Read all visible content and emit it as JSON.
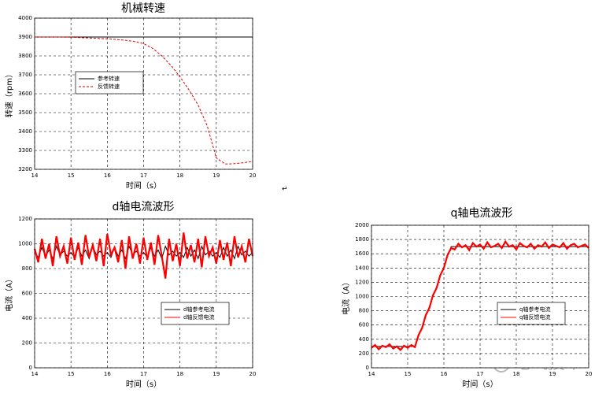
{
  "chart_data": [
    {
      "type": "line",
      "title": "机械转速",
      "xlabel": "时间（s）",
      "ylabel": "转速（rpm）",
      "x": [
        14,
        14.25,
        14.5,
        14.75,
        15,
        15.25,
        15.5,
        15.75,
        16,
        16.25,
        16.5,
        16.75,
        17,
        17.25,
        17.5,
        17.75,
        18,
        18.25,
        18.5,
        18.75,
        19,
        19.25,
        19.5,
        19.75,
        20
      ],
      "series": [
        {
          "name": "参考转速",
          "color": "#000000",
          "linestyle": "solid",
          "values": [
            3900,
            3900,
            3900,
            3900,
            3900,
            3900,
            3900,
            3900,
            3900,
            3900,
            3900,
            3900,
            3900,
            3900,
            3900,
            3900,
            3900,
            3900,
            3900,
            3900,
            3900,
            3900,
            3900,
            3900,
            3900
          ]
        },
        {
          "name": "反馈转速",
          "color": "#e00000",
          "linestyle": "dashed",
          "values": [
            3900,
            3900,
            3900,
            3900,
            3899,
            3897,
            3895,
            3893,
            3890,
            3887,
            3883,
            3876,
            3865,
            3840,
            3800,
            3750,
            3690,
            3620,
            3540,
            3430,
            3260,
            3228,
            3230,
            3235,
            3242
          ]
        }
      ],
      "xlim": [
        14,
        20
      ],
      "xticks": [
        14,
        15,
        16,
        17,
        18,
        19,
        20
      ],
      "ylim": [
        3200,
        4000
      ],
      "yticks": [
        3200,
        3300,
        3400,
        3500,
        3600,
        3700,
        3800,
        3900,
        4000
      ],
      "grid": true,
      "legend": "middle-left"
    },
    {
      "type": "line",
      "title": "d轴电流波形",
      "xlabel": "时间（s）",
      "ylabel": "电流（A）",
      "x": [
        14,
        14.1,
        14.2,
        14.3,
        14.4,
        14.5,
        14.6,
        14.7,
        14.8,
        14.9,
        15,
        15.1,
        15.2,
        15.3,
        15.4,
        15.5,
        15.6,
        15.7,
        15.8,
        15.9,
        16,
        16.1,
        16.2,
        16.3,
        16.4,
        16.5,
        16.6,
        16.7,
        16.8,
        16.9,
        17,
        17.1,
        17.2,
        17.3,
        17.4,
        17.5,
        17.6,
        17.7,
        17.8,
        17.9,
        18,
        18.1,
        18.2,
        18.3,
        18.4,
        18.5,
        18.6,
        18.7,
        18.8,
        18.9,
        19,
        19.1,
        19.2,
        19.3,
        19.4,
        19.5,
        19.6,
        19.7,
        19.8,
        19.9,
        20
      ],
      "series": [
        {
          "name": "d轴参考电流",
          "color": "#000000",
          "linestyle": "solid",
          "values": [
            930,
            890,
            970,
            900,
            950,
            880,
            980,
            910,
            940,
            900,
            930,
            890,
            970,
            900,
            950,
            880,
            980,
            910,
            940,
            900,
            930,
            890,
            970,
            900,
            950,
            880,
            980,
            910,
            940,
            900,
            930,
            890,
            970,
            900,
            950,
            880,
            980,
            910,
            940,
            900,
            930,
            890,
            970,
            900,
            950,
            880,
            980,
            910,
            940,
            900,
            930,
            890,
            970,
            900,
            950,
            880,
            980,
            910,
            940,
            900,
            930
          ]
        },
        {
          "name": "d轴反馈电流",
          "color": "#ff0000",
          "linestyle": "solid",
          "values": [
            960,
            850,
            1040,
            880,
            1000,
            820,
            1060,
            900,
            980,
            840,
            1050,
            870,
            1010,
            830,
            1070,
            890,
            990,
            860,
            1040,
            820,
            1080,
            910,
            970,
            850,
            1030,
            800,
            1060,
            880,
            1000,
            840,
            1050,
            870,
            1010,
            830,
            1070,
            900,
            720,
            1040,
            860,
            1000,
            820,
            1090,
            880,
            990,
            850,
            1040,
            810,
            1060,
            900,
            970,
            840,
            1030,
            870,
            1010,
            820,
            1060,
            890,
            980,
            850,
            1040,
            900
          ]
        }
      ],
      "xlim": [
        14,
        20
      ],
      "xticks": [
        14,
        15,
        16,
        17,
        18,
        19,
        20
      ],
      "ylim": [
        0,
        1200
      ],
      "yticks": [
        0,
        200,
        400,
        600,
        800,
        1000,
        1200
      ],
      "grid": true,
      "legend": "lower-right"
    },
    {
      "type": "line",
      "title": "q轴电流波形",
      "xlabel": "时间（s）",
      "ylabel": "电流（A）",
      "x": [
        14,
        14.1,
        14.2,
        14.3,
        14.4,
        14.5,
        14.6,
        14.7,
        14.8,
        14.9,
        15,
        15.1,
        15.2,
        15.3,
        15.4,
        15.5,
        15.6,
        15.7,
        15.8,
        15.9,
        16,
        16.1,
        16.2,
        16.3,
        16.4,
        16.5,
        16.6,
        16.7,
        16.8,
        16.9,
        17,
        17.1,
        17.2,
        17.3,
        17.4,
        17.5,
        17.6,
        17.7,
        17.8,
        17.9,
        18,
        18.1,
        18.2,
        18.3,
        18.4,
        18.5,
        18.6,
        18.7,
        18.8,
        18.9,
        19,
        19.1,
        19.2,
        19.3,
        19.4,
        19.5,
        19.6,
        19.7,
        19.8,
        19.9,
        20
      ],
      "series": [
        {
          "name": "q轴参考电流",
          "color": "#000000",
          "linestyle": "solid",
          "values": [
            300,
            300,
            300,
            300,
            300,
            300,
            300,
            300,
            300,
            300,
            300,
            300,
            300,
            440,
            580,
            720,
            860,
            1000,
            1140,
            1280,
            1420,
            1560,
            1700,
            1700,
            1700,
            1700,
            1700,
            1700,
            1700,
            1700,
            1700,
            1700,
            1700,
            1700,
            1700,
            1700,
            1700,
            1700,
            1700,
            1700,
            1700,
            1700,
            1700,
            1700,
            1700,
            1700,
            1700,
            1700,
            1700,
            1700,
            1700,
            1700,
            1700,
            1700,
            1700,
            1700,
            1700,
            1700,
            1700,
            1700,
            1700
          ]
        },
        {
          "name": "q轴反馈电流",
          "color": "#ff0000",
          "linestyle": "solid",
          "values": [
            280,
            320,
            260,
            310,
            290,
            330,
            270,
            300,
            250,
            310,
            280,
            320,
            290,
            460,
            560,
            740,
            840,
            1020,
            1120,
            1300,
            1400,
            1580,
            1680,
            1660,
            1740,
            1690,
            1720,
            1650,
            1750,
            1700,
            1730,
            1670,
            1760,
            1690,
            1710,
            1740,
            1680,
            1770,
            1700,
            1720,
            1660,
            1750,
            1710,
            1690,
            1740,
            1670,
            1720,
            1700,
            1760,
            1680,
            1730,
            1710,
            1690,
            1750,
            1670,
            1720,
            1740,
            1690,
            1710,
            1730,
            1680
          ]
        }
      ],
      "xlim": [
        14,
        20
      ],
      "xticks": [
        14,
        15,
        16,
        17,
        18,
        19,
        20
      ],
      "ylim": [
        0,
        2000
      ],
      "yticks": [
        0,
        200,
        400,
        600,
        800,
        1000,
        1200,
        1400,
        1600,
        1800,
        2000
      ],
      "grid": true,
      "legend": "lower-right"
    }
  ],
  "paragraph_mark": "↵",
  "watermark": "电气技术"
}
